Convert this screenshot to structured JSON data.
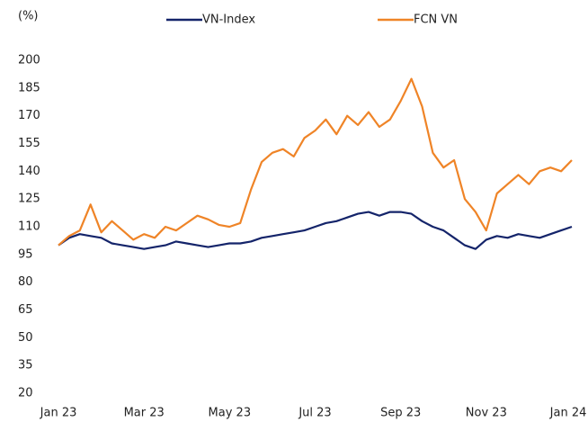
{
  "chart_data": {
    "type": "line",
    "y_label": "(%)",
    "categories": [
      "Jan 23",
      null,
      null,
      null,
      null,
      null,
      null,
      null,
      "Mar 23",
      null,
      null,
      null,
      null,
      null,
      null,
      null,
      "May 23",
      null,
      null,
      null,
      null,
      null,
      null,
      null,
      "Jul 23",
      null,
      null,
      null,
      null,
      null,
      null,
      null,
      "Sep 23",
      null,
      null,
      null,
      null,
      null,
      null,
      null,
      "Nov 23",
      null,
      null,
      null,
      null,
      null,
      null,
      null,
      "Jan 24"
    ],
    "series": [
      {
        "name": "VN-Index",
        "color": "#14246a",
        "values": [
          100,
          104,
          106,
          105,
          104,
          101,
          100,
          99,
          98,
          99,
          100,
          102,
          101,
          100,
          99,
          100,
          101,
          101,
          102,
          104,
          105,
          106,
          107,
          108,
          110,
          112,
          113,
          115,
          117,
          118,
          116,
          118,
          118,
          117,
          113,
          110,
          108,
          104,
          100,
          98,
          103,
          105,
          104,
          106,
          105,
          104,
          106,
          108,
          110
        ]
      },
      {
        "name": "FCN VN",
        "color": "#ef8427",
        "values": [
          100,
          105,
          108,
          122,
          107,
          113,
          108,
          103,
          106,
          104,
          110,
          108,
          112,
          116,
          114,
          111,
          110,
          112,
          130,
          145,
          150,
          152,
          148,
          158,
          162,
          168,
          160,
          170,
          165,
          172,
          164,
          168,
          178,
          190,
          175,
          150,
          142,
          146,
          125,
          118,
          108,
          128,
          133,
          138,
          133,
          140,
          142,
          140,
          146
        ]
      }
    ],
    "ylim": [
      20,
      200
    ],
    "yticks": [
      20,
      35,
      50,
      65,
      80,
      95,
      110,
      125,
      140,
      155,
      170,
      185,
      200
    ],
    "grid": false
  }
}
